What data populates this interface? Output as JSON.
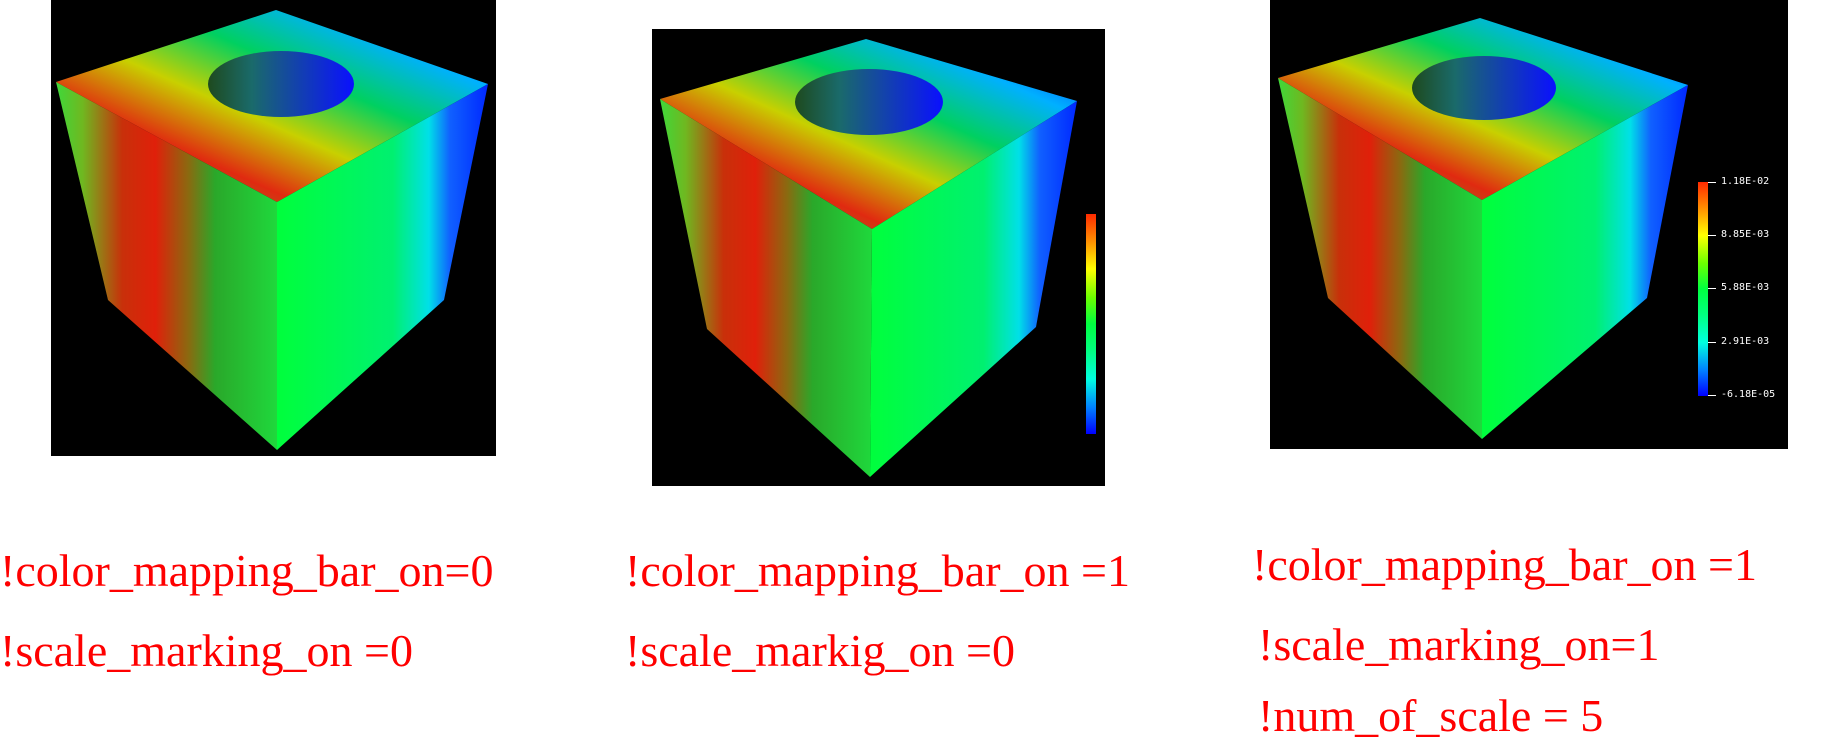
{
  "panels": [
    {
      "id": "panel-1",
      "colorbar_visible": false,
      "captions": [
        "!color_mapping_bar_on=0",
        "!scale_marking_on =0"
      ]
    },
    {
      "id": "panel-2",
      "colorbar_visible": true,
      "captions": [
        "!color_mapping_bar_on =1",
        "!scale_markig_on  =0"
      ]
    },
    {
      "id": "panel-3",
      "colorbar_visible": true,
      "scale_labels": [
        "1.18E-02",
        "8.85E-03",
        "5.88E-03",
        "2.91E-03",
        "-6.18E-05"
      ],
      "captions": [
        "!color_mapping_bar_on =1",
        "!scale_marking_on=1",
        "!num_of_scale = 5"
      ]
    }
  ],
  "colormap": [
    "#0000ff",
    "#00ffe0",
    "#00ff40",
    "#ffff00",
    "#ff2a00"
  ]
}
